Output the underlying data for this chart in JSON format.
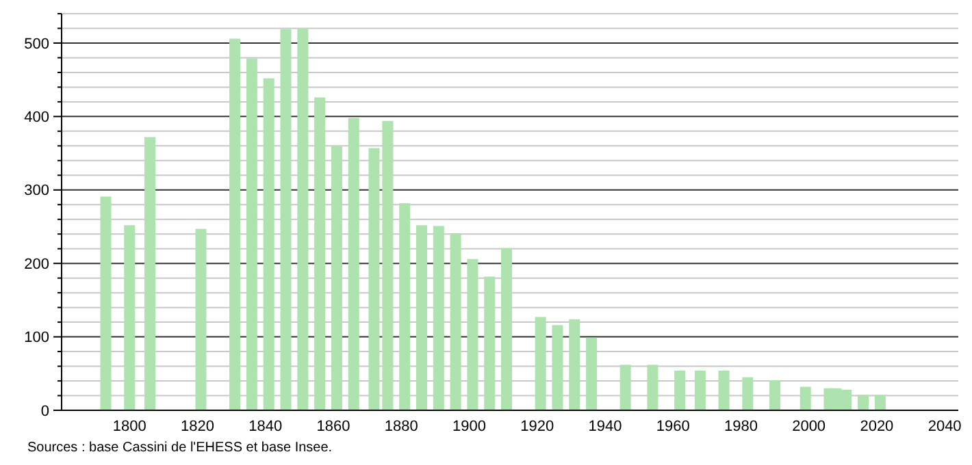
{
  "chart_data": {
    "type": "bar",
    "color": "#aee2ae",
    "x": [
      1793,
      1800,
      1806,
      1821,
      1831,
      1836,
      1841,
      1846,
      1851,
      1856,
      1861,
      1866,
      1872,
      1876,
      1881,
      1886,
      1891,
      1896,
      1901,
      1906,
      1911,
      1921,
      1926,
      1931,
      1936,
      1946,
      1954,
      1962,
      1968,
      1975,
      1982,
      1990,
      1999,
      2006,
      2008,
      2011,
      2016,
      2021
    ],
    "values": [
      291,
      252,
      372,
      247,
      506,
      479,
      452,
      519,
      520,
      426,
      360,
      398,
      357,
      394,
      282,
      252,
      251,
      241,
      206,
      182,
      221,
      127,
      116,
      124,
      99,
      62,
      62,
      54,
      54,
      54,
      45,
      41,
      32,
      30,
      30,
      28,
      21,
      21
    ],
    "xlim": [
      1780,
      2044
    ],
    "xticks": [
      1800,
      1820,
      1840,
      1860,
      1880,
      1900,
      1920,
      1940,
      1960,
      1980,
      2000,
      2020,
      2040
    ],
    "ylim": [
      0,
      540
    ],
    "yticks": [
      0,
      {
        "value": 20,
        "label": null
      },
      {
        "value": 40,
        "label": null
      },
      {
        "value": 60,
        "label": null
      },
      {
        "value": 80,
        "label": null
      },
      100,
      {
        "value": 120,
        "label": null
      },
      {
        "value": 140,
        "label": null
      },
      {
        "value": 160,
        "label": null
      },
      {
        "value": 180,
        "label": null
      },
      200,
      {
        "value": 220,
        "label": null
      },
      {
        "value": 240,
        "label": null
      },
      {
        "value": 260,
        "label": null
      },
      {
        "value": 280,
        "label": null
      },
      300,
      {
        "value": 320,
        "label": null
      },
      {
        "value": 340,
        "label": null
      },
      {
        "value": 360,
        "label": null
      },
      {
        "value": 380,
        "label": null
      },
      400,
      {
        "value": 420,
        "label": null
      },
      {
        "value": 440,
        "label": null
      },
      {
        "value": 460,
        "label": null
      },
      {
        "value": 480,
        "label": null
      },
      500,
      {
        "value": 520,
        "label": null
      },
      {
        "value": 540,
        "label": null
      }
    ],
    "grid": true,
    "annotations": [
      "Sources : base Cassini de l'EHESS et base Insee."
    ]
  }
}
